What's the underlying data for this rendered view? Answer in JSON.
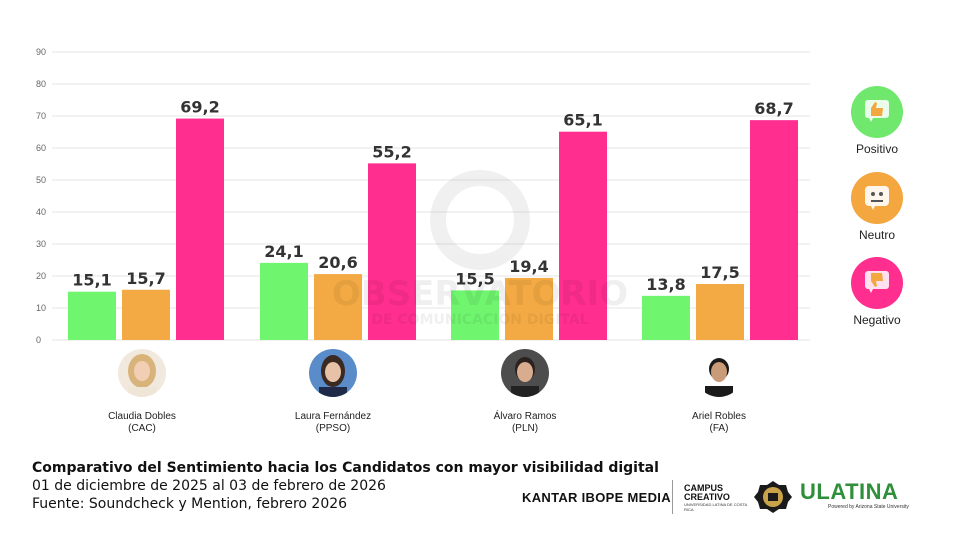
{
  "chart_data": {
    "type": "bar",
    "categories": [
      "Claudia Dobles (CAC)",
      "Laura Fernández (PPSO)",
      "Álvaro Ramos (PLN)",
      "Ariel Robles (FA)"
    ],
    "series": [
      {
        "name": "Positivo",
        "values": [
          15.1,
          24.1,
          15.5,
          13.8
        ],
        "color": "#70f56f"
      },
      {
        "name": "Neutro",
        "values": [
          15.7,
          20.6,
          19.4,
          17.5
        ],
        "color": "#f4aa44"
      },
      {
        "name": "Negativo",
        "values": [
          69.2,
          55.2,
          65.1,
          68.7
        ],
        "color": "#ff2e8f"
      }
    ],
    "data_labels": [
      [
        "15,1",
        "15,7",
        "69,2"
      ],
      [
        "24,1",
        "20,6",
        "55,2"
      ],
      [
        "15,5",
        "19,4",
        "65,1"
      ],
      [
        "13,8",
        "17,5",
        "68,7"
      ]
    ],
    "yticks": [
      "0",
      "10",
      "20",
      "30",
      "40",
      "50",
      "60",
      "70",
      "80",
      "90"
    ],
    "ylim": [
      0,
      90
    ],
    "grid": true,
    "legend": "right"
  },
  "candidates": [
    {
      "name": "Claudia Dobles",
      "party": "(CAC)"
    },
    {
      "name": "Laura Fernández",
      "party": "(PPSO)"
    },
    {
      "name": "Álvaro Ramos",
      "party": "(PLN)"
    },
    {
      "name": "Ariel Robles",
      "party": "(FA)"
    }
  ],
  "legend": [
    {
      "label": "Positivo",
      "color": "#70e86e",
      "icon": "thumbs-up-icon"
    },
    {
      "label": "Neutro",
      "color": "#f4a63f",
      "icon": "neutral-face-icon"
    },
    {
      "label": "Negativo",
      "color": "#ff2e8f",
      "icon": "thumbs-down-icon"
    }
  ],
  "watermark": {
    "line1": "OBSERVATORIO",
    "line2": "DE COMUNICACIÓN DIGITAL"
  },
  "footer": {
    "title": "Comparativo del Sentimiento hacia los Candidatos con mayor visibilidad digital",
    "dates": "01 de diciembre de 2025 al 03 de febrero de 2026",
    "source": "Fuente: Soundcheck y Mention, febrero 2026"
  },
  "logos": {
    "kantar": "KANTAR IBOPE MEDIA",
    "campus": "CAMPUS CREATIVO",
    "campus_sub": "UNIVERSIDAD LATINA DE COSTA RICA",
    "ulatina": "ULATINA",
    "ulatina_sub": "Powered by Arizona State University"
  }
}
